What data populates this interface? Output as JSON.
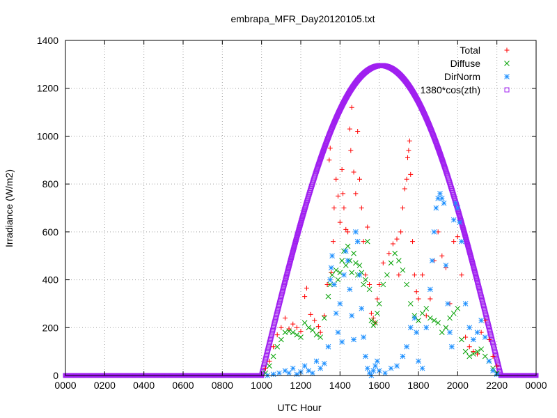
{
  "chart_data": {
    "type": "scatter",
    "title": "embrapa_MFR_Day20120105.txt",
    "xlabel": "UTC Hour",
    "ylabel": "Irradiance (W/m2)",
    "xlim": [
      0,
      24
    ],
    "ylim": [
      0,
      1400
    ],
    "grid": true,
    "legend_position": "top-right",
    "x_ticks": [
      {
        "value": 0,
        "label": "0000"
      },
      {
        "value": 2,
        "label": "0200"
      },
      {
        "value": 4,
        "label": "0400"
      },
      {
        "value": 6,
        "label": "0600"
      },
      {
        "value": 8,
        "label": "0800"
      },
      {
        "value": 10,
        "label": "1000"
      },
      {
        "value": 12,
        "label": "1200"
      },
      {
        "value": 14,
        "label": "1400"
      },
      {
        "value": 16,
        "label": "1600"
      },
      {
        "value": 18,
        "label": "1800"
      },
      {
        "value": 20,
        "label": "2000"
      },
      {
        "value": 22,
        "label": "2200"
      },
      {
        "value": 24,
        "label": "0000"
      }
    ],
    "y_ticks": [
      0,
      200,
      400,
      600,
      800,
      1000,
      1200,
      1400
    ],
    "series": [
      {
        "name": "Total",
        "color": "#ff0000",
        "marker": "plus",
        "points": [
          [
            10.2,
            30
          ],
          [
            10.4,
            60
          ],
          [
            10.6,
            120
          ],
          [
            10.8,
            170
          ],
          [
            11.0,
            200
          ],
          [
            11.2,
            240
          ],
          [
            11.4,
            195
          ],
          [
            11.6,
            215
          ],
          [
            11.8,
            200
          ],
          [
            12.0,
            185
          ],
          [
            12.2,
            330
          ],
          [
            12.3,
            365
          ],
          [
            12.5,
            255
          ],
          [
            12.7,
            230
          ],
          [
            12.9,
            205
          ],
          [
            13.0,
            180
          ],
          [
            13.2,
            250
          ],
          [
            13.35,
            380
          ],
          [
            13.45,
            900
          ],
          [
            13.5,
            950
          ],
          [
            13.55,
            430
          ],
          [
            13.65,
            560
          ],
          [
            13.7,
            700
          ],
          [
            13.8,
            820
          ],
          [
            13.9,
            750
          ],
          [
            14.0,
            640
          ],
          [
            14.1,
            860
          ],
          [
            14.15,
            760
          ],
          [
            14.2,
            700
          ],
          [
            14.3,
            610
          ],
          [
            14.4,
            600
          ],
          [
            14.5,
            1030
          ],
          [
            14.55,
            940
          ],
          [
            14.6,
            1120
          ],
          [
            14.7,
            850
          ],
          [
            14.8,
            760
          ],
          [
            14.9,
            1020
          ],
          [
            15.0,
            820
          ],
          [
            15.1,
            700
          ],
          [
            15.2,
            560
          ],
          [
            15.3,
            420
          ],
          [
            15.4,
            620
          ],
          [
            15.5,
            380
          ],
          [
            15.6,
            260
          ],
          [
            15.7,
            240
          ],
          [
            15.8,
            220
          ],
          [
            15.9,
            320
          ],
          [
            16.0,
            380
          ],
          [
            16.2,
            470
          ],
          [
            16.5,
            510
          ],
          [
            16.7,
            550
          ],
          [
            16.9,
            570
          ],
          [
            17.0,
            420
          ],
          [
            17.1,
            600
          ],
          [
            17.2,
            700
          ],
          [
            17.3,
            780
          ],
          [
            17.4,
            820
          ],
          [
            17.45,
            910
          ],
          [
            17.5,
            940
          ],
          [
            17.55,
            980
          ],
          [
            17.6,
            840
          ],
          [
            17.7,
            560
          ],
          [
            17.8,
            420
          ],
          [
            17.9,
            350
          ],
          [
            18.0,
            320
          ],
          [
            18.2,
            420
          ],
          [
            18.4,
            250
          ],
          [
            18.6,
            320
          ],
          [
            18.8,
            480
          ],
          [
            19.0,
            600
          ],
          [
            19.2,
            500
          ],
          [
            19.4,
            450
          ],
          [
            19.6,
            300
          ],
          [
            19.8,
            560
          ],
          [
            20.0,
            580
          ],
          [
            20.2,
            420
          ],
          [
            20.4,
            160
          ],
          [
            20.6,
            120
          ],
          [
            20.8,
            100
          ],
          [
            21.0,
            90
          ],
          [
            21.2,
            180
          ],
          [
            21.4,
            230
          ],
          [
            21.6,
            150
          ],
          [
            21.8,
            80
          ],
          [
            22.0,
            40
          ]
        ]
      },
      {
        "name": "Diffuse",
        "color": "#00a000",
        "marker": "cross",
        "points": [
          [
            10.2,
            10
          ],
          [
            10.4,
            40
          ],
          [
            10.6,
            80
          ],
          [
            10.8,
            120
          ],
          [
            11.0,
            150
          ],
          [
            11.2,
            180
          ],
          [
            11.4,
            185
          ],
          [
            11.6,
            180
          ],
          [
            11.8,
            170
          ],
          [
            12.0,
            160
          ],
          [
            12.2,
            220
          ],
          [
            12.4,
            200
          ],
          [
            12.6,
            190
          ],
          [
            12.8,
            170
          ],
          [
            13.0,
            160
          ],
          [
            13.2,
            240
          ],
          [
            13.4,
            330
          ],
          [
            13.5,
            380
          ],
          [
            13.6,
            420
          ],
          [
            13.7,
            380
          ],
          [
            13.8,
            440
          ],
          [
            13.9,
            400
          ],
          [
            14.0,
            430
          ],
          [
            14.1,
            480
          ],
          [
            14.2,
            520
          ],
          [
            14.3,
            460
          ],
          [
            14.4,
            540
          ],
          [
            14.5,
            480
          ],
          [
            14.6,
            430
          ],
          [
            14.7,
            510
          ],
          [
            14.8,
            470
          ],
          [
            14.9,
            420
          ],
          [
            15.0,
            460
          ],
          [
            15.1,
            430
          ],
          [
            15.2,
            380
          ],
          [
            15.3,
            400
          ],
          [
            15.4,
            560
          ],
          [
            15.5,
            360
          ],
          [
            15.6,
            230
          ],
          [
            15.7,
            210
          ],
          [
            15.8,
            220
          ],
          [
            15.9,
            260
          ],
          [
            16.0,
            300
          ],
          [
            16.2,
            380
          ],
          [
            16.4,
            420
          ],
          [
            16.6,
            470
          ],
          [
            16.8,
            510
          ],
          [
            17.0,
            480
          ],
          [
            17.2,
            440
          ],
          [
            17.4,
            380
          ],
          [
            17.6,
            300
          ],
          [
            17.8,
            250
          ],
          [
            18.0,
            230
          ],
          [
            18.2,
            260
          ],
          [
            18.4,
            280
          ],
          [
            18.6,
            240
          ],
          [
            18.8,
            230
          ],
          [
            19.0,
            220
          ],
          [
            19.2,
            180
          ],
          [
            19.4,
            200
          ],
          [
            19.6,
            240
          ],
          [
            19.8,
            260
          ],
          [
            20.0,
            280
          ],
          [
            20.2,
            150
          ],
          [
            20.4,
            100
          ],
          [
            20.6,
            80
          ],
          [
            20.8,
            90
          ],
          [
            21.0,
            100
          ],
          [
            21.2,
            110
          ],
          [
            21.4,
            80
          ],
          [
            21.6,
            60
          ],
          [
            21.8,
            30
          ],
          [
            22.0,
            10
          ]
        ]
      },
      {
        "name": "DirNorm",
        "color": "#1e90ff",
        "marker": "star",
        "points": [
          [
            10.3,
            0
          ],
          [
            10.6,
            5
          ],
          [
            10.9,
            10
          ],
          [
            11.2,
            20
          ],
          [
            11.4,
            10
          ],
          [
            11.6,
            30
          ],
          [
            11.8,
            5
          ],
          [
            12.0,
            15
          ],
          [
            12.2,
            40
          ],
          [
            12.4,
            20
          ],
          [
            12.6,
            10
          ],
          [
            12.8,
            60
          ],
          [
            13.0,
            30
          ],
          [
            13.2,
            50
          ],
          [
            13.4,
            120
          ],
          [
            13.5,
            400
          ],
          [
            13.55,
            450
          ],
          [
            13.6,
            500
          ],
          [
            13.7,
            380
          ],
          [
            13.8,
            260
          ],
          [
            13.9,
            180
          ],
          [
            14.0,
            300
          ],
          [
            14.1,
            140
          ],
          [
            14.2,
            420
          ],
          [
            14.3,
            520
          ],
          [
            14.4,
            480
          ],
          [
            14.5,
            360
          ],
          [
            14.6,
            250
          ],
          [
            14.7,
            150
          ],
          [
            14.8,
            600
          ],
          [
            14.9,
            560
          ],
          [
            15.0,
            420
          ],
          [
            15.1,
            280
          ],
          [
            15.2,
            160
          ],
          [
            15.3,
            80
          ],
          [
            15.4,
            30
          ],
          [
            15.5,
            10
          ],
          [
            15.6,
            0
          ],
          [
            15.7,
            20
          ],
          [
            15.8,
            40
          ],
          [
            15.9,
            60
          ],
          [
            16.0,
            20
          ],
          [
            16.3,
            10
          ],
          [
            16.6,
            30
          ],
          [
            16.9,
            40
          ],
          [
            17.2,
            80
          ],
          [
            17.4,
            120
          ],
          [
            17.6,
            200
          ],
          [
            17.8,
            240
          ],
          [
            17.9,
            180
          ],
          [
            18.0,
            60
          ],
          [
            18.2,
            30
          ],
          [
            18.4,
            200
          ],
          [
            18.6,
            360
          ],
          [
            18.7,
            480
          ],
          [
            18.8,
            600
          ],
          [
            18.9,
            700
          ],
          [
            19.0,
            740
          ],
          [
            19.1,
            760
          ],
          [
            19.2,
            740
          ],
          [
            19.3,
            720
          ],
          [
            19.4,
            460
          ],
          [
            19.5,
            300
          ],
          [
            19.6,
            180
          ],
          [
            19.7,
            120
          ],
          [
            19.8,
            650
          ],
          [
            19.9,
            720
          ],
          [
            20.0,
            700
          ],
          [
            20.1,
            640
          ],
          [
            20.2,
            560
          ],
          [
            20.4,
            300
          ],
          [
            20.6,
            200
          ],
          [
            20.8,
            150
          ],
          [
            21.0,
            180
          ],
          [
            21.2,
            230
          ],
          [
            21.4,
            160
          ],
          [
            21.6,
            60
          ],
          [
            21.8,
            20
          ],
          [
            22.0,
            5
          ]
        ]
      },
      {
        "name": "1380*cos(zth)",
        "color": "#a020f0",
        "marker": "square",
        "formula": {
          "sunrise": 10.0,
          "sunset": 22.2,
          "peak": 1295
        }
      }
    ]
  }
}
